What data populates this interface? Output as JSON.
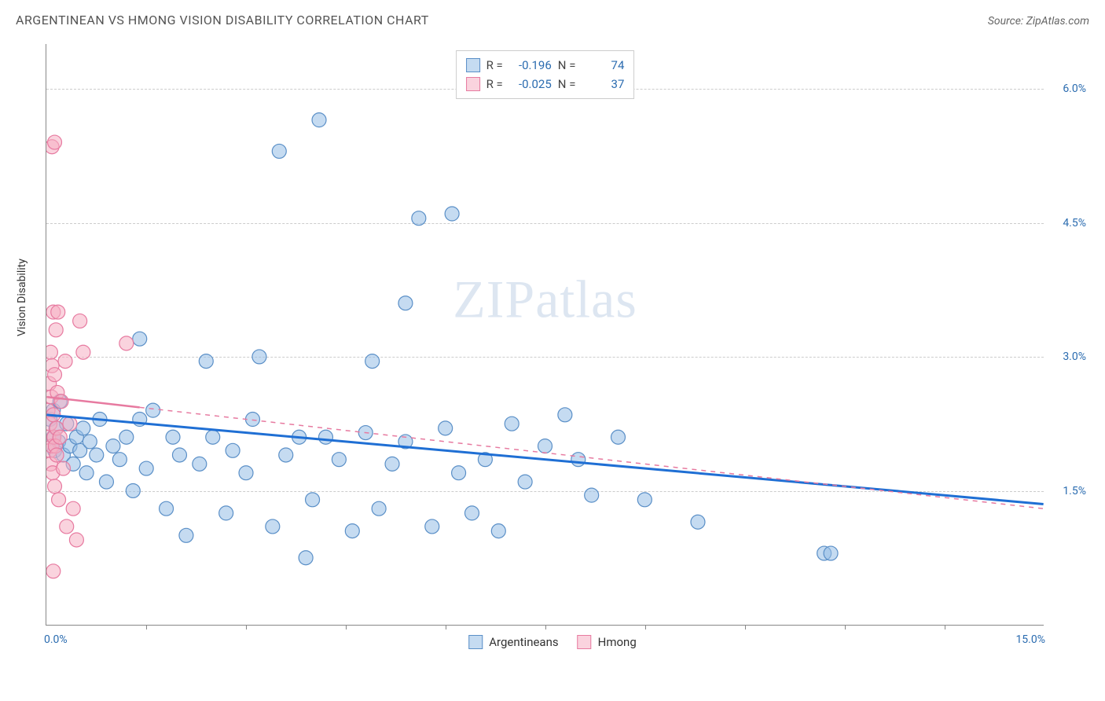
{
  "title": "ARGENTINEAN VS HMONG VISION DISABILITY CORRELATION CHART",
  "source": "Source: ZipAtlas.com",
  "ylabel": "Vision Disability",
  "watermark": {
    "bold": "ZIP",
    "rest": "atlas"
  },
  "chart": {
    "type": "scatter",
    "xlim": [
      0.0,
      15.0
    ],
    "ylim": [
      0.0,
      6.5
    ],
    "x_tick_labels": {
      "left": "0.0%",
      "right": "15.0%"
    },
    "x_minor_ticks": [
      1.5,
      3.0,
      4.5,
      6.0,
      7.5,
      9.0,
      10.5,
      12.0,
      13.5
    ],
    "y_gridlines": [
      1.5,
      3.0,
      4.5,
      6.0
    ],
    "y_tick_labels": [
      "1.5%",
      "3.0%",
      "4.5%",
      "6.0%"
    ],
    "background_color": "#ffffff",
    "grid_color": "#cccccc",
    "axis_color": "#888888",
    "point_radius": 9,
    "point_stroke_width": 1.2,
    "series": [
      {
        "name": "Argentineans",
        "fill": "rgba(150,190,230,0.55)",
        "stroke": "#5a8fc7",
        "trend": {
          "color": "#1f6fd4",
          "width": 3,
          "y_at_x0": 2.35,
          "y_at_xmax": 1.35,
          "solid_until_x": 15.0
        },
        "points": [
          [
            0.05,
            2.3
          ],
          [
            0.1,
            2.1
          ],
          [
            0.1,
            2.4
          ],
          [
            0.12,
            1.95
          ],
          [
            0.14,
            2.2
          ],
          [
            0.18,
            2.05
          ],
          [
            0.2,
            2.5
          ],
          [
            0.25,
            1.9
          ],
          [
            0.3,
            2.25
          ],
          [
            0.35,
            2.0
          ],
          [
            0.4,
            1.8
          ],
          [
            0.45,
            2.1
          ],
          [
            0.5,
            1.95
          ],
          [
            0.55,
            2.2
          ],
          [
            0.6,
            1.7
          ],
          [
            0.65,
            2.05
          ],
          [
            0.75,
            1.9
          ],
          [
            0.8,
            2.3
          ],
          [
            0.9,
            1.6
          ],
          [
            1.0,
            2.0
          ],
          [
            1.1,
            1.85
          ],
          [
            1.2,
            2.1
          ],
          [
            1.3,
            1.5
          ],
          [
            1.4,
            2.3
          ],
          [
            1.5,
            1.75
          ],
          [
            1.6,
            2.4
          ],
          [
            1.4,
            3.2
          ],
          [
            1.8,
            1.3
          ],
          [
            1.9,
            2.1
          ],
          [
            2.0,
            1.9
          ],
          [
            2.1,
            1.0
          ],
          [
            2.3,
            1.8
          ],
          [
            2.4,
            2.95
          ],
          [
            2.5,
            2.1
          ],
          [
            2.7,
            1.25
          ],
          [
            2.8,
            1.95
          ],
          [
            3.0,
            1.7
          ],
          [
            3.1,
            2.3
          ],
          [
            3.2,
            3.0
          ],
          [
            3.4,
            1.1
          ],
          [
            3.5,
            5.3
          ],
          [
            3.6,
            1.9
          ],
          [
            3.8,
            2.1
          ],
          [
            3.9,
            0.75
          ],
          [
            4.1,
            5.65
          ],
          [
            4.0,
            1.4
          ],
          [
            4.2,
            2.1
          ],
          [
            4.4,
            1.85
          ],
          [
            4.6,
            1.05
          ],
          [
            4.8,
            2.15
          ],
          [
            4.9,
            2.95
          ],
          [
            5.0,
            1.3
          ],
          [
            5.2,
            1.8
          ],
          [
            5.4,
            3.6
          ],
          [
            5.4,
            2.05
          ],
          [
            5.6,
            4.55
          ],
          [
            5.8,
            1.1
          ],
          [
            6.0,
            2.2
          ],
          [
            6.1,
            4.6
          ],
          [
            6.2,
            1.7
          ],
          [
            6.4,
            1.25
          ],
          [
            6.6,
            1.85
          ],
          [
            6.8,
            1.05
          ],
          [
            7.0,
            2.25
          ],
          [
            7.2,
            1.6
          ],
          [
            7.5,
            2.0
          ],
          [
            7.8,
            2.35
          ],
          [
            8.0,
            1.85
          ],
          [
            8.2,
            1.45
          ],
          [
            8.6,
            2.1
          ],
          [
            9.0,
            1.4
          ],
          [
            9.8,
            1.15
          ],
          [
            11.7,
            0.8
          ],
          [
            11.8,
            0.8
          ]
        ]
      },
      {
        "name": "Hmong",
        "fill": "rgba(245,175,195,0.55)",
        "stroke": "#e77aa0",
        "trend": {
          "color": "#e77aa0",
          "width": 2.5,
          "y_at_x0": 2.55,
          "y_at_xmax": 1.3,
          "solid_until_x": 1.4
        },
        "points": [
          [
            0.02,
            2.4
          ],
          [
            0.03,
            2.1
          ],
          [
            0.04,
            2.7
          ],
          [
            0.05,
            1.95
          ],
          [
            0.05,
            2.25
          ],
          [
            0.06,
            3.05
          ],
          [
            0.06,
            1.8
          ],
          [
            0.07,
            2.55
          ],
          [
            0.08,
            2.0
          ],
          [
            0.08,
            2.9
          ],
          [
            0.09,
            1.7
          ],
          [
            0.1,
            2.35
          ],
          [
            0.1,
            3.5
          ],
          [
            0.11,
            2.1
          ],
          [
            0.12,
            1.55
          ],
          [
            0.12,
            2.8
          ],
          [
            0.13,
            2.0
          ],
          [
            0.14,
            3.3
          ],
          [
            0.15,
            2.2
          ],
          [
            0.15,
            1.9
          ],
          [
            0.16,
            2.6
          ],
          [
            0.17,
            3.5
          ],
          [
            0.18,
            1.4
          ],
          [
            0.2,
            2.1
          ],
          [
            0.22,
            2.5
          ],
          [
            0.25,
            1.75
          ],
          [
            0.28,
            2.95
          ],
          [
            0.3,
            1.1
          ],
          [
            0.35,
            2.25
          ],
          [
            0.4,
            1.3
          ],
          [
            0.5,
            3.4
          ],
          [
            0.08,
            5.35
          ],
          [
            0.12,
            5.4
          ],
          [
            0.45,
            0.95
          ],
          [
            0.1,
            0.6
          ],
          [
            0.55,
            3.05
          ],
          [
            1.2,
            3.15
          ]
        ]
      }
    ]
  },
  "legend_top": {
    "rows": [
      {
        "swatch_fill": "rgba(150,190,230,0.55)",
        "swatch_stroke": "#5a8fc7",
        "r_label": "R =",
        "r_value": "-0.196",
        "n_label": "N =",
        "n_value": "74"
      },
      {
        "swatch_fill": "rgba(245,175,195,0.55)",
        "swatch_stroke": "#e77aa0",
        "r_label": "R =",
        "r_value": "-0.025",
        "n_label": "N =",
        "n_value": "37"
      }
    ]
  },
  "legend_bottom": {
    "items": [
      {
        "swatch_fill": "rgba(150,190,230,0.55)",
        "swatch_stroke": "#5a8fc7",
        "label": "Argentineans"
      },
      {
        "swatch_fill": "rgba(245,175,195,0.55)",
        "swatch_stroke": "#e77aa0",
        "label": "Hmong"
      }
    ]
  }
}
